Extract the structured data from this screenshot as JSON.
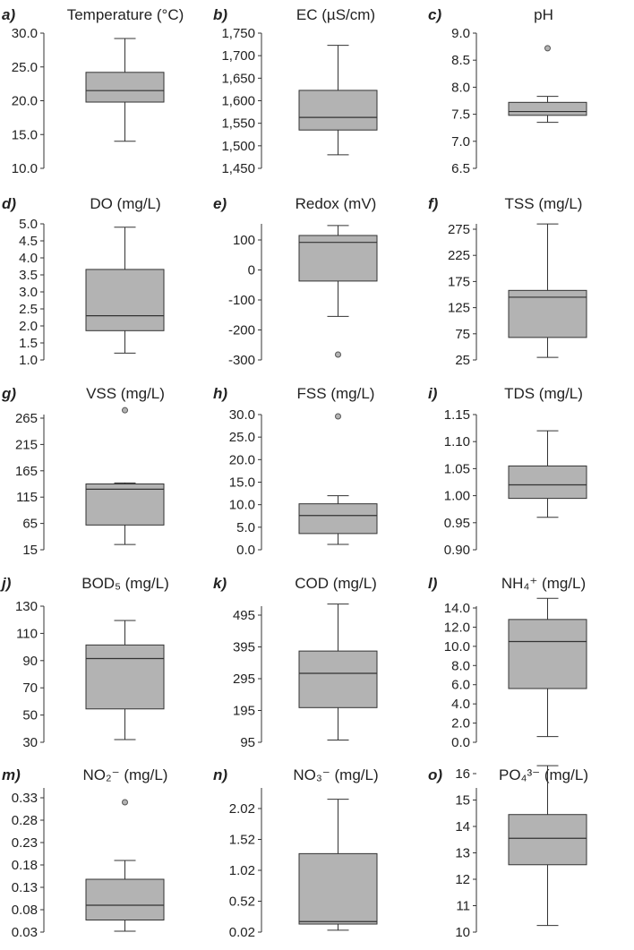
{
  "chart_data": [
    {
      "panel_label": "a)",
      "title": "Temperature (°C)",
      "type": "box",
      "ylim": [
        10,
        30
      ],
      "yticks": [
        "30.0",
        "25.0",
        "20.0",
        "15.0",
        "10.0"
      ],
      "ytick_values": [
        30,
        25,
        20,
        15,
        10
      ],
      "box": {
        "min": 14.0,
        "q1": 19.8,
        "median": 21.5,
        "q3": 24.2,
        "max": 29.2
      },
      "outliers": []
    },
    {
      "panel_label": "b)",
      "title": "EC (µS/cm)",
      "type": "box",
      "ylim": [
        1450,
        1750
      ],
      "yticks": [
        "1,750",
        "1,700",
        "1,650",
        "1,600",
        "1,550",
        "1,500",
        "1,450"
      ],
      "ytick_values": [
        1750,
        1700,
        1650,
        1600,
        1550,
        1500,
        1450
      ],
      "box": {
        "min": 1480,
        "q1": 1535,
        "median": 1563,
        "q3": 1623,
        "max": 1723
      },
      "outliers": []
    },
    {
      "panel_label": "c)",
      "title": "pH",
      "type": "box",
      "ylim": [
        6.5,
        9.0
      ],
      "yticks": [
        "9.0",
        "8.5",
        "8.0",
        "7.5",
        "7.0",
        "6.5"
      ],
      "ytick_values": [
        9.0,
        8.5,
        8.0,
        7.5,
        7.0,
        6.5
      ],
      "box": {
        "min": 7.35,
        "q1": 7.48,
        "median": 7.55,
        "q3": 7.72,
        "max": 7.83
      },
      "outliers": [
        8.72
      ]
    },
    {
      "panel_label": "d)",
      "title": "DO (mg/L)",
      "type": "box",
      "ylim": [
        1.0,
        5.0
      ],
      "yticks": [
        "5.0",
        "4.5",
        "4.0",
        "3.5",
        "3.0",
        "2.5",
        "2.0",
        "1.5",
        "1.0"
      ],
      "ytick_values": [
        5.0,
        4.5,
        4.0,
        3.5,
        3.0,
        2.5,
        2.0,
        1.5,
        1.0
      ],
      "box": {
        "min": 1.2,
        "q1": 1.86,
        "median": 2.3,
        "q3": 3.66,
        "max": 4.9
      },
      "outliers": []
    },
    {
      "panel_label": "e)",
      "title": "Redox (mV)",
      "type": "box",
      "ylim": [
        -300,
        200
      ],
      "yticks": [
        "100",
        "0",
        "-100",
        "-200",
        "-300"
      ],
      "ytick_values": [
        100,
        0,
        -100,
        -200,
        -300
      ],
      "box": {
        "min": -155,
        "q1": -37,
        "median": 92,
        "q3": 115,
        "max": 148
      },
      "outliers": [
        -282
      ]
    },
    {
      "panel_label": "f)",
      "title": "TSS (mg/L)",
      "type": "box",
      "ylim": [
        25,
        300
      ],
      "yticks": [
        "275",
        "225",
        "175",
        "125",
        "75",
        "25"
      ],
      "ytick_values": [
        275,
        225,
        175,
        125,
        75,
        25
      ],
      "box": {
        "min": 30,
        "q1": 68,
        "median": 145,
        "q3": 158,
        "max": 285
      },
      "outliers": []
    },
    {
      "panel_label": "g)",
      "title": "VSS (mg/L)",
      "type": "box",
      "ylim": [
        15,
        290
      ],
      "yticks": [
        "265",
        "215",
        "165",
        "115",
        "65",
        "15"
      ],
      "ytick_values": [
        265,
        215,
        165,
        115,
        65,
        15
      ],
      "box": {
        "min": 25,
        "q1": 62,
        "median": 130,
        "q3": 140,
        "max": 142
      },
      "outliers": [
        280
      ]
    },
    {
      "panel_label": "h)",
      "title": "FSS (mg/L)",
      "type": "box",
      "ylim": [
        0,
        30
      ],
      "yticks": [
        "30.0",
        "25.0",
        "20.0",
        "15.0",
        "10.0",
        "5.0",
        "0.0"
      ],
      "ytick_values": [
        30,
        25,
        20,
        15,
        10,
        5,
        0
      ],
      "box": {
        "min": 1.2,
        "q1": 3.6,
        "median": 7.6,
        "q3": 10.2,
        "max": 12.0
      },
      "outliers": [
        29.6
      ]
    },
    {
      "panel_label": "i)",
      "title": "TDS (mg/L)",
      "type": "box",
      "ylim": [
        0.9,
        1.15
      ],
      "yticks": [
        "1.15",
        "1.10",
        "1.05",
        "1.00",
        "0.95",
        "0.90"
      ],
      "ytick_values": [
        1.15,
        1.1,
        1.05,
        1.0,
        0.95,
        0.9
      ],
      "box": {
        "min": 0.96,
        "q1": 0.995,
        "median": 1.02,
        "q3": 1.055,
        "max": 1.12
      },
      "outliers": []
    },
    {
      "panel_label": "j)",
      "title": "BOD₅ (mg/L)",
      "type": "box",
      "ylim": [
        30,
        130
      ],
      "yticks": [
        "130",
        "110",
        "90",
        "70",
        "50",
        "30"
      ],
      "ytick_values": [
        130,
        110,
        90,
        70,
        50,
        30
      ],
      "box": {
        "min": 32,
        "q1": 54.5,
        "median": 91.5,
        "q3": 101.5,
        "max": 119.5
      },
      "outliers": []
    },
    {
      "panel_label": "k)",
      "title": "COD (mg/L)",
      "type": "box",
      "ylim": [
        95,
        545
      ],
      "yticks": [
        "495",
        "395",
        "295",
        "195",
        "95"
      ],
      "ytick_values": [
        495,
        395,
        295,
        195,
        95
      ],
      "box": {
        "min": 102,
        "q1": 204,
        "median": 312,
        "q3": 382,
        "max": 530
      },
      "outliers": []
    },
    {
      "panel_label": "l)",
      "title": "NH₄⁺ (mg/L)",
      "type": "box",
      "ylim": [
        0,
        15
      ],
      "yticks": [
        "14.0",
        "12.0",
        "10.0",
        "8.0",
        "6.0",
        "4.0",
        "2.0",
        "0.0"
      ],
      "ytick_values": [
        14,
        12,
        10,
        8,
        6,
        4,
        2,
        0
      ],
      "box": {
        "min": 0.6,
        "q1": 5.6,
        "median": 10.5,
        "q3": 12.8,
        "max": 15.0
      },
      "outliers": []
    },
    {
      "panel_label": "m)",
      "title": "NO₂⁻ (mg/L)",
      "type": "box",
      "ylim": [
        0.03,
        0.355
      ],
      "yticks": [
        "0.33",
        "0.28",
        "0.23",
        "0.18",
        "0.13",
        "0.08",
        "0.03"
      ],
      "ytick_values": [
        0.33,
        0.28,
        0.23,
        0.18,
        0.13,
        0.08,
        0.03
      ],
      "box": {
        "min": 0.032,
        "q1": 0.057,
        "median": 0.09,
        "q3": 0.148,
        "max": 0.19
      },
      "outliers": [
        0.32
      ]
    },
    {
      "panel_label": "n)",
      "title": "NO₃⁻ (mg/L)",
      "type": "box",
      "ylim": [
        0.02,
        2.52
      ],
      "yticks": [
        "2.02",
        "1.52",
        "1.02",
        "0.52",
        "0.02"
      ],
      "ytick_values": [
        2.02,
        1.52,
        1.02,
        0.52,
        0.02
      ],
      "box": {
        "min": 0.05,
        "q1": 0.15,
        "median": 0.19,
        "q3": 1.29,
        "max": 2.17
      },
      "outliers": []
    },
    {
      "panel_label": "o)",
      "title": "PO₄³⁻ (mg/L)",
      "type": "box",
      "ylim": [
        10,
        16.5
      ],
      "yticks": [
        "16",
        "15",
        "14",
        "13",
        "12",
        "11",
        "10"
      ],
      "ytick_values": [
        16,
        15,
        14,
        13,
        12,
        11,
        10
      ],
      "box": {
        "min": 10.25,
        "q1": 12.55,
        "median": 13.55,
        "q3": 14.45,
        "max": 16.3
      },
      "outliers": []
    }
  ]
}
